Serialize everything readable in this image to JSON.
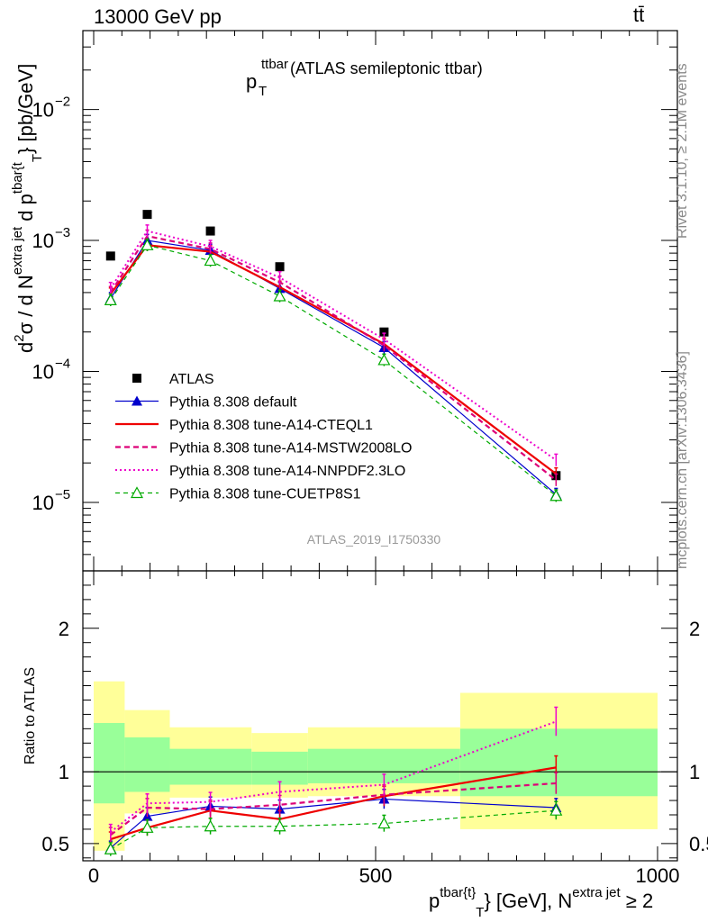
{
  "header": {
    "left": "13000 GeV pp",
    "right": "tt̄"
  },
  "side_labels": {
    "rivet": "Rivet 3.1.10, ≥ 2.1M events",
    "mcplots": "mcplots.cern.ch [arXiv:1306.3436]"
  },
  "chart_data": [
    {
      "type": "line",
      "title_main": "p",
      "title_sup": "ttbar",
      "title_sub": "T",
      "title_rest": " (ATLAS semileptonic ttbar)",
      "watermark": "ATLAS_2019_I1750330",
      "yscale": "log",
      "ylim": [
        3e-06,
        0.04
      ],
      "xlim": [
        -20,
        1000
      ],
      "ylabel_parts": {
        "d2": "d",
        "sup2": "2",
        "sigma": "σ / d N",
        "sup_extra": "extra jet",
        "dp": " d p",
        "sup_tbar": "tbar{t",
        "sub_T": "T",
        "unit": "} [pb/GeV]"
      },
      "yticks": [
        {
          "value": 1e-05,
          "base": "10",
          "exp": "−5"
        },
        {
          "value": 0.0001,
          "base": "10",
          "exp": "−4"
        },
        {
          "value": 0.001,
          "base": "10",
          "exp": "−3"
        },
        {
          "value": 0.01,
          "base": "10",
          "exp": "−2"
        }
      ],
      "x": [
        30,
        95,
        207,
        330,
        515,
        820
      ],
      "series": [
        {
          "name": "ATLAS",
          "color": "#000000",
          "dash": "",
          "width": 0,
          "marker": "square",
          "values": [
            0.00076,
            0.00158,
            0.00118,
            0.00063,
            0.0002,
            1.6e-05
          ]
        },
        {
          "name": "Pythia 8.308 default",
          "color": "#0000cc",
          "dash": "",
          "width": 1.2,
          "marker": "triangle",
          "values": [
            0.00036,
            0.001,
            0.00084,
            0.00043,
            0.000152,
            1.15e-05
          ]
        },
        {
          "name": "Pythia 8.308 tune-A14-CTEQL1",
          "color": "#ee0000",
          "dash": "",
          "width": 2.2,
          "marker": "none",
          "values": [
            0.00039,
            0.00092,
            0.00082,
            0.00044,
            0.000162,
            1.65e-05
          ]
        },
        {
          "name": "Pythia 8.308 tune-A14-MSTW2008LO",
          "color": "#dd0077",
          "dash": "6,4",
          "width": 2.2,
          "marker": "none",
          "values": [
            0.0004,
            0.00108,
            0.00086,
            0.00048,
            0.000158,
            1.48e-05
          ]
        },
        {
          "name": "Pythia 8.308 tune-A14-NNPDF2.3LO",
          "color": "#ee00cc",
          "dash": "2,3",
          "width": 2.0,
          "marker": "none",
          "values": [
            0.00043,
            0.00118,
            0.0009,
            0.00052,
            0.000176,
            2.1e-05
          ]
        },
        {
          "name": "Pythia 8.308 tune-CUETP8S1",
          "color": "#00aa00",
          "dash": "5,4",
          "width": 1.2,
          "marker": "open-triangle",
          "values": [
            0.00035,
            0.00092,
            0.0007,
            0.000375,
            0.000122,
            1.12e-05
          ]
        }
      ]
    },
    {
      "type": "line",
      "ylabel": "Ratio to ATLAS",
      "ylim": [
        0.38,
        2.4
      ],
      "xlim": [
        -20,
        1000
      ],
      "yticks": [
        {
          "value": 0.5,
          "label": "0.5"
        },
        {
          "value": 1,
          "label": "1"
        },
        {
          "value": 2,
          "label": "2"
        }
      ],
      "xticks": [
        {
          "value": 0,
          "label": "0"
        },
        {
          "value": 500,
          "label": "500"
        },
        {
          "value": 1000,
          "label": "1000"
        }
      ],
      "xlabel_parts": {
        "p": "p",
        "sup_tbar": "tbar{t}",
        "sub_T": "T",
        "mid": "} [GeV], N",
        "sup_extra": "extra jet",
        "end": " ≥ 2"
      },
      "bands": [
        {
          "x0": 0,
          "x1": 55,
          "yellow": [
            0.45,
            1.63
          ],
          "green": [
            0.78,
            1.34
          ]
        },
        {
          "x0": 55,
          "x1": 135,
          "yellow": [
            0.71,
            1.43
          ],
          "green": [
            0.86,
            1.24
          ]
        },
        {
          "x0": 135,
          "x1": 280,
          "yellow": [
            0.82,
            1.31
          ],
          "green": [
            0.91,
            1.16
          ]
        },
        {
          "x0": 280,
          "x1": 380,
          "yellow": [
            0.82,
            1.27
          ],
          "green": [
            0.91,
            1.14
          ]
        },
        {
          "x0": 380,
          "x1": 650,
          "yellow": [
            0.83,
            1.31
          ],
          "green": [
            0.92,
            1.16
          ]
        },
        {
          "x0": 650,
          "x1": 1000,
          "yellow": [
            0.6,
            1.55
          ],
          "green": [
            0.83,
            1.3
          ]
        }
      ],
      "series": [
        {
          "name": "Pythia 8.308 default",
          "color": "#0000cc",
          "dash": "",
          "width": 1.2,
          "marker": "triangle",
          "values": [
            0.47,
            0.69,
            0.76,
            0.74,
            0.81,
            0.75
          ]
        },
        {
          "name": "Pythia 8.308 tune-A14-CTEQL1",
          "color": "#ee0000",
          "dash": "",
          "width": 2.2,
          "marker": "none",
          "values": [
            0.53,
            0.61,
            0.73,
            0.67,
            0.83,
            1.03
          ]
        },
        {
          "name": "Pythia 8.308 tune-A14-MSTW2008LO",
          "color": "#dd0077",
          "dash": "6,4",
          "width": 2.2,
          "marker": "none",
          "values": [
            0.56,
            0.75,
            0.74,
            0.77,
            0.84,
            0.92
          ]
        },
        {
          "name": "Pythia 8.308 tune-A14-NNPDF2.3LO",
          "color": "#ee00cc",
          "dash": "2,3",
          "width": 2.0,
          "marker": "none",
          "values": [
            0.58,
            0.78,
            0.79,
            0.86,
            0.91,
            1.35
          ]
        },
        {
          "name": "Pythia 8.308 tune-CUETP8S1",
          "color": "#00aa00",
          "dash": "5,4",
          "width": 1.2,
          "marker": "open-triangle",
          "values": [
            0.46,
            0.61,
            0.62,
            0.62,
            0.64,
            0.73
          ]
        }
      ]
    }
  ],
  "colors": {
    "band_yellow": "#ffff99",
    "band_green": "#99ff99"
  }
}
